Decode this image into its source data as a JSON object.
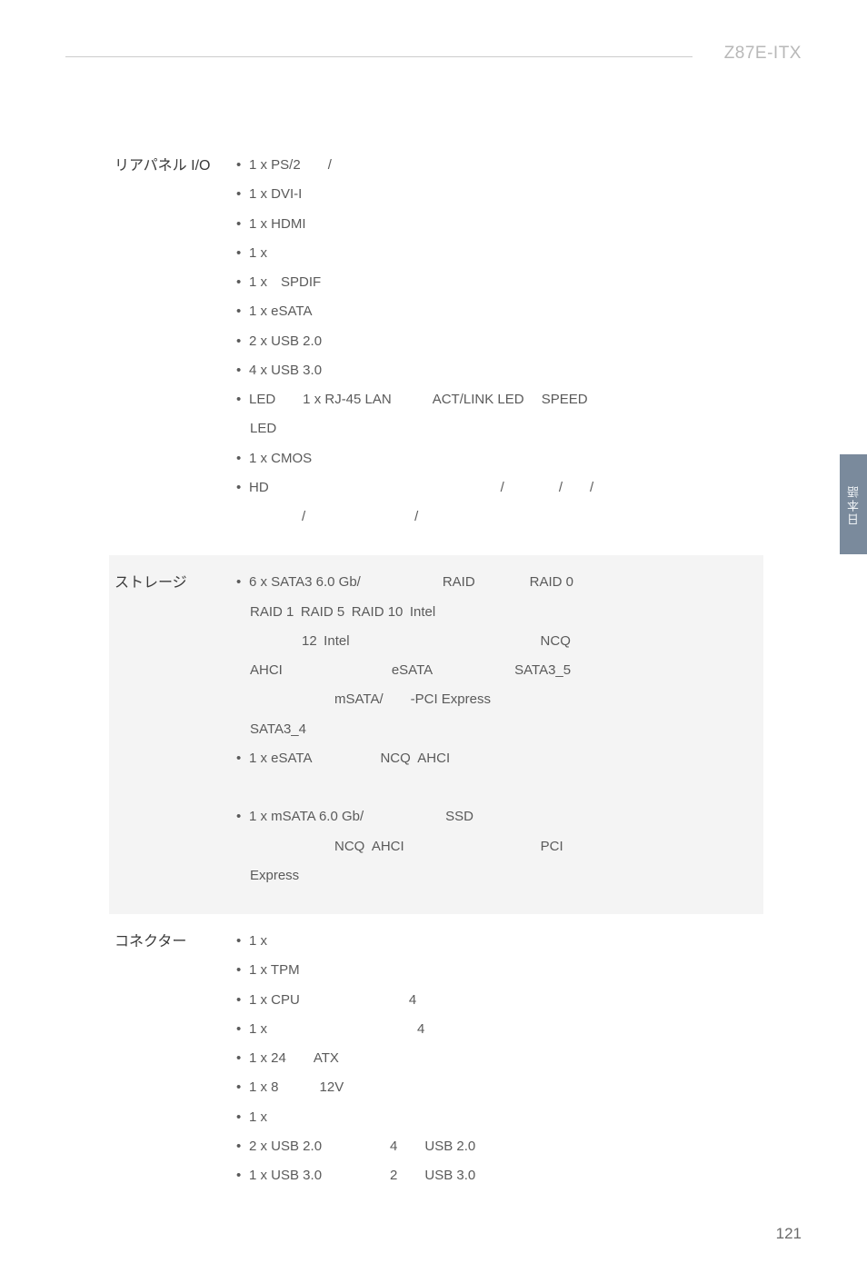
{
  "header": {
    "model": "Z87E-ITX"
  },
  "sideTab": "日本語",
  "pageNumber": "121",
  "sections": [
    {
      "label": "リアパネル I/O",
      "alt": false,
      "items": [
        {
          "type": "li",
          "text": "1 x PS/2  /"
        },
        {
          "type": "li",
          "text": "1 x DVI-I"
        },
        {
          "type": "li",
          "text": "1 x HDMI"
        },
        {
          "type": "li",
          "text": "1 x"
        },
        {
          "type": "li",
          "text": "1 x SPDIF"
        },
        {
          "type": "li",
          "text": "1 x eSATA"
        },
        {
          "type": "li",
          "text": "2 x USB 2.0"
        },
        {
          "type": "li",
          "text": "4 x USB 3.0"
        },
        {
          "type": "li",
          "text": "LED  1 x RJ-45 LAN   ACT/LINK LED  SPEED"
        },
        {
          "type": "plain",
          "cls": "",
          "text": " LED"
        },
        {
          "type": "li",
          "text": "1 x CMOS"
        },
        {
          "type": "li",
          "text": "HD                 /    /  /"
        },
        {
          "type": "plain",
          "cls": "indent1",
          "text": "/        /"
        }
      ]
    },
    {
      "label": "ストレージ",
      "alt": true,
      "items": [
        {
          "type": "li",
          "text": "6 x SATA3 6.0 Gb/      RAID    RAID 0"
        },
        {
          "type": "plain",
          "cls": "",
          "text": " RAID 1 RAID 5 RAID 10 Intel"
        },
        {
          "type": "plain",
          "cls": "indent1",
          "text": "12 Intel              NCQ"
        },
        {
          "type": "plain",
          "cls": "",
          "text": " AHCI        eSATA      SATA3_5"
        },
        {
          "type": "plain",
          "cls": "indent2",
          "text": "mSATA/  -PCI Express"
        },
        {
          "type": "plain",
          "cls": "",
          "text": " SATA3_4"
        },
        {
          "type": "li",
          "text": "1 x eSATA     NCQ AHCI"
        },
        {
          "type": "blank",
          "text": " "
        },
        {
          "type": "li",
          "text": "1 x mSATA 6.0 Gb/      SSD"
        },
        {
          "type": "plain",
          "cls": "indent2",
          "text": "NCQ AHCI          PCI"
        },
        {
          "type": "plain",
          "cls": "",
          "text": " Express"
        }
      ]
    },
    {
      "label": "コネクター",
      "alt": false,
      "items": [
        {
          "type": "li",
          "text": "1 x"
        },
        {
          "type": "li",
          "text": "1 x TPM"
        },
        {
          "type": "li",
          "text": "1 x CPU        4"
        },
        {
          "type": "li",
          "text": "1 x           4"
        },
        {
          "type": "li",
          "text": "1 x 24  ATX"
        },
        {
          "type": "li",
          "text": "1 x 8   12V"
        },
        {
          "type": "li",
          "text": "1 x"
        },
        {
          "type": "li",
          "text": "2 x USB 2.0     4  USB 2.0"
        },
        {
          "type": "li",
          "text": "1 x USB 3.0     2  USB 3.0"
        }
      ]
    }
  ]
}
